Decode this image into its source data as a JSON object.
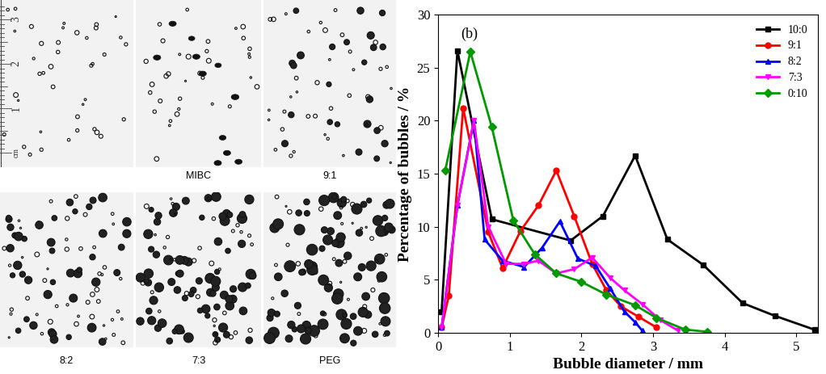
{
  "chart_data": {
    "type": "line",
    "title": "(b)",
    "x_label": "Bubble diameter / mm",
    "y_label": "Percentage of bubbles / %",
    "xlim": [
      0,
      5.3
    ],
    "xticks": [
      0,
      1,
      2,
      3,
      4,
      5
    ],
    "ylim": [
      0,
      30
    ],
    "yticks": [
      0,
      5,
      10,
      15,
      20,
      25,
      30
    ],
    "legend": "upper right",
    "grid": false,
    "series": [
      {
        "name": "10:0",
        "color": "#000000",
        "marker": "square",
        "x": [
          0.05,
          0.27,
          0.75,
          1.85,
          2.3,
          2.75,
          3.2,
          3.7,
          4.25,
          4.7,
          5.25
        ],
        "values": [
          2,
          26.6,
          10.7,
          8.7,
          11,
          16.7,
          8.8,
          6.4,
          2.8,
          1.6,
          0.3
        ]
      },
      {
        "name": "9:1",
        "color": "#ff0000",
        "marker": "circle",
        "x": [
          0.05,
          0.15,
          0.35,
          0.7,
          0.9,
          1.15,
          1.4,
          1.65,
          1.9,
          2.15,
          2.35,
          2.55,
          2.8,
          3.05
        ],
        "values": [
          0.5,
          3.5,
          21.2,
          9.5,
          6.1,
          9.6,
          12,
          15.3,
          11,
          6.5,
          4,
          2.5,
          1.5,
          0.5
        ]
      },
      {
        "name": "8:2",
        "color": "#0000ff",
        "marker": "triangle_up",
        "x": [
          0.05,
          0.27,
          0.5,
          0.65,
          0.9,
          1.2,
          1.45,
          1.7,
          1.95,
          2.2,
          2.4,
          2.6,
          2.75,
          2.85
        ],
        "values": [
          0.5,
          12,
          20,
          8.8,
          6.8,
          6.2,
          8,
          10.5,
          7,
          6.3,
          4.2,
          2,
          1,
          0.2
        ]
      },
      {
        "name": "7:3",
        "color": "#ff00ff",
        "marker": "triangle_down",
        "x": [
          0.05,
          0.27,
          0.5,
          0.7,
          0.95,
          1.2,
          1.4,
          1.65,
          1.9,
          2.15,
          2.4,
          2.6,
          2.85,
          3.1,
          3.35
        ],
        "values": [
          0.5,
          12,
          20,
          10,
          6.5,
          6.5,
          6.8,
          5.6,
          6,
          7.1,
          5.2,
          4,
          2.7,
          1.2,
          0.2
        ]
      },
      {
        "name": "0:10",
        "color": "#009900",
        "marker": "diamond",
        "x": [
          0.1,
          0.45,
          0.75,
          1.05,
          1.35,
          1.65,
          2.0,
          2.35,
          2.75,
          3.05,
          3.45,
          3.75
        ],
        "values": [
          15.3,
          26.5,
          19.4,
          10.6,
          7.4,
          5.6,
          4.8,
          3.6,
          2.6,
          1.4,
          0.3,
          0.1
        ]
      }
    ]
  },
  "image_panels": {
    "panels": [
      {
        "label": null
      },
      {
        "label": "MIBC"
      },
      {
        "label": "9:1"
      },
      {
        "label": "8:2"
      },
      {
        "label": "7:3"
      },
      {
        "label": "PEG"
      }
    ],
    "ruler": {
      "ticks": [
        1,
        2,
        3
      ],
      "unit": "cm"
    }
  }
}
